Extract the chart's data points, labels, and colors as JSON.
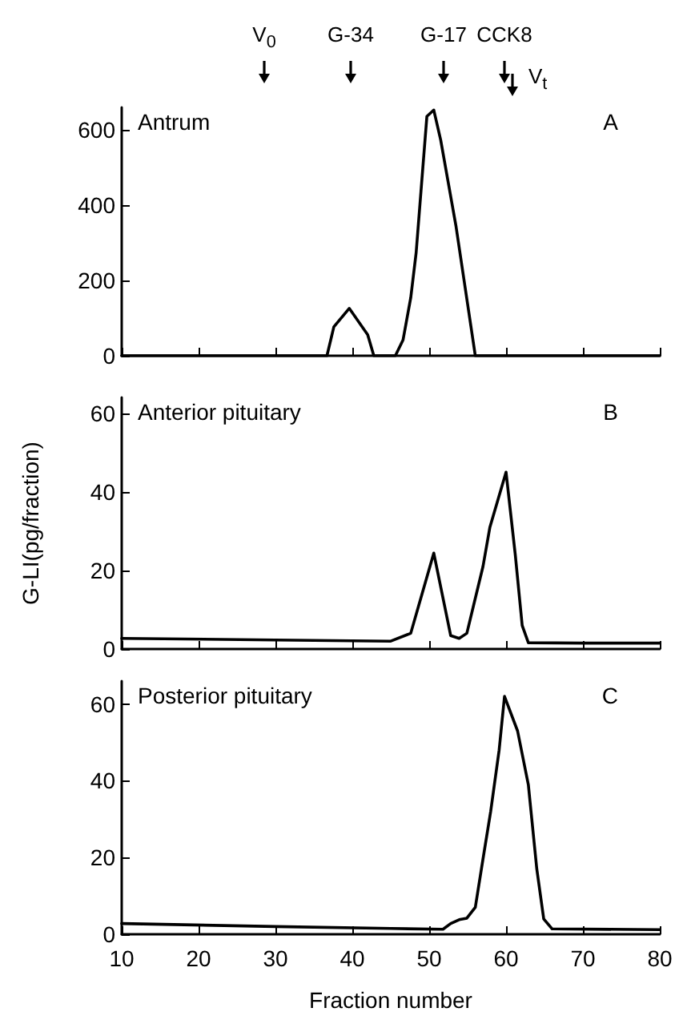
{
  "chart_data": [
    {
      "type": "line",
      "annotations": [
        "Antrum",
        "A",
        "V$_{0}$",
        "G-34",
        "G-17",
        "CCK8",
        "V$_{t}$"
      ],
      "series": [
        {
          "color": "#000000",
          "x": [
            10,
            36.7,
            37.6,
            39.6,
            42,
            42.8,
            45.6,
            46.6,
            47.6,
            48.3,
            49.7,
            50.6,
            51.5,
            53.5,
            56,
            80
          ],
          "values": [
            0,
            0,
            77,
            126,
            56,
            0,
            0,
            42,
            154,
            273,
            636,
            653,
            573,
            343,
            0,
            0
          ]
        }
      ],
      "xlim": [
        10,
        80
      ],
      "xticks": [
        10,
        20,
        30,
        40,
        50,
        60,
        70,
        80
      ],
      "ylim": [
        0,
        660
      ],
      "yticks": [
        0,
        200,
        400,
        600
      ],
      "tick_labels": "y",
      "grid": false,
      "marker": "none",
      "line_style": "solid"
    },
    {
      "type": "line",
      "ylabel": "G-LI(pg/fraction)",
      "annotations": [
        "Anterior pituitary",
        "B"
      ],
      "series": [
        {
          "color": "#000000",
          "x": [
            10,
            30,
            45,
            47.6,
            50.6,
            52.8,
            53.9,
            54.9,
            57,
            57.9,
            60,
            61.2,
            62.1,
            62.9,
            70,
            80
          ],
          "values": [
            2.7,
            2.3,
            2,
            4,
            24.4,
            3.4,
            2.7,
            4,
            21,
            31,
            45,
            24,
            6,
            1.6,
            1.5,
            1.5
          ]
        }
      ],
      "xlim": [
        10,
        80
      ],
      "xticks": [
        10,
        20,
        30,
        40,
        50,
        60,
        70,
        80
      ],
      "ylim": [
        0,
        64
      ],
      "yticks": [
        0,
        20,
        40,
        60
      ],
      "tick_labels": "y",
      "grid": false,
      "marker": "none",
      "line_style": "solid"
    },
    {
      "type": "line",
      "xlabel": "Fraction number",
      "annotations": [
        "Posterior pituitary",
        "C"
      ],
      "series": [
        {
          "color": "#000000",
          "x": [
            10,
            30,
            45,
            51.8,
            52.8,
            53.9,
            54.9,
            56,
            57,
            58,
            59.1,
            59.8,
            61.5,
            62.9,
            64,
            64.9,
            66,
            80
          ],
          "values": [
            2.8,
            2,
            1.5,
            1.3,
            2.8,
            3.8,
            4.2,
            7,
            19.6,
            32,
            48,
            62,
            53,
            39,
            17,
            4,
            1.4,
            1.2
          ]
        }
      ],
      "xlim": [
        10,
        80
      ],
      "xticks": [
        10,
        20,
        30,
        40,
        50,
        60,
        70,
        80
      ],
      "ylim": [
        0,
        66
      ],
      "yticks": [
        0,
        20,
        40,
        60
      ],
      "grid": false,
      "marker": "none",
      "line_style": "solid"
    }
  ]
}
